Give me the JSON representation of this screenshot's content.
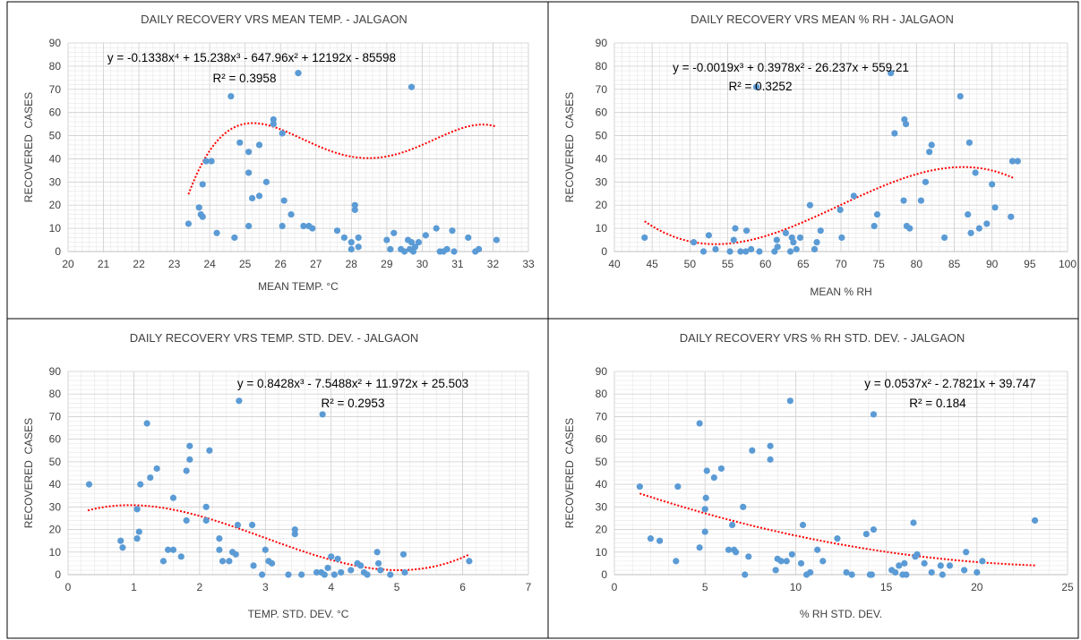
{
  "chart_data": [
    {
      "type": "scatter",
      "title": "DAILY RECOVERY VRS MEAN TEMP. - JALGAON",
      "xlabel": "MEAN TEMP. °C",
      "ylabel": "RECOVERED  CASES",
      "xlim": [
        20,
        33
      ],
      "ylim": [
        0,
        90
      ],
      "xticks": [
        20,
        21,
        22,
        23,
        24,
        25,
        26,
        27,
        28,
        29,
        30,
        31,
        32,
        33
      ],
      "yticks": [
        0,
        10,
        20,
        30,
        40,
        50,
        60,
        70,
        80,
        90
      ],
      "grid": true,
      "equation": "y = -0.1338x⁴ + 15.238x³ - 647.96x² + 12192x - 85598",
      "r2": "R² = 0.3958",
      "trend": {
        "kind": "poly",
        "coeffs": [
          -0.1338,
          15.238,
          -647.96,
          12192,
          -85598
        ],
        "xrange": [
          23.4,
          32.1
        ]
      },
      "points": [
        [
          23.4,
          12
        ],
        [
          23.7,
          19
        ],
        [
          23.75,
          16
        ],
        [
          23.8,
          15
        ],
        [
          23.8,
          29
        ],
        [
          23.9,
          39
        ],
        [
          24.05,
          39
        ],
        [
          24.2,
          8
        ],
        [
          24.6,
          67
        ],
        [
          24.7,
          6
        ],
        [
          24.85,
          47
        ],
        [
          25.1,
          43
        ],
        [
          25.1,
          34
        ],
        [
          25.1,
          11
        ],
        [
          25.2,
          23
        ],
        [
          25.4,
          24
        ],
        [
          25.4,
          46
        ],
        [
          25.6,
          30
        ],
        [
          25.8,
          57
        ],
        [
          25.8,
          55
        ],
        [
          26.05,
          51
        ],
        [
          26.05,
          11
        ],
        [
          26.1,
          22
        ],
        [
          26.3,
          16
        ],
        [
          26.5,
          77
        ],
        [
          26.65,
          11
        ],
        [
          26.8,
          11
        ],
        [
          26.9,
          10
        ],
        [
          27.6,
          9
        ],
        [
          27.8,
          6
        ],
        [
          28.0,
          4
        ],
        [
          28.0,
          1
        ],
        [
          28.1,
          18
        ],
        [
          28.1,
          20
        ],
        [
          28.2,
          2
        ],
        [
          28.2,
          6
        ],
        [
          29.0,
          5
        ],
        [
          29.1,
          1
        ],
        [
          29.2,
          8
        ],
        [
          29.4,
          1
        ],
        [
          29.5,
          0
        ],
        [
          29.6,
          5
        ],
        [
          29.65,
          1
        ],
        [
          29.7,
          71
        ],
        [
          29.7,
          4
        ],
        [
          29.75,
          0
        ],
        [
          29.8,
          2
        ],
        [
          29.9,
          4
        ],
        [
          30.1,
          7
        ],
        [
          30.4,
          10
        ],
        [
          30.5,
          0
        ],
        [
          30.6,
          0
        ],
        [
          30.7,
          1
        ],
        [
          30.85,
          9
        ],
        [
          30.9,
          0
        ],
        [
          31.3,
          6
        ],
        [
          31.5,
          0
        ],
        [
          31.6,
          1
        ],
        [
          32.1,
          5
        ]
      ]
    },
    {
      "type": "scatter",
      "title": "DAILY RECOVERY VRS MEAN % RH - JALGAON",
      "xlabel": "MEAN % RH",
      "ylabel": "RECOVERED  CASES",
      "xlim": [
        40,
        100
      ],
      "ylim": [
        0,
        90
      ],
      "xticks": [
        40,
        45,
        50,
        55,
        60,
        65,
        70,
        75,
        80,
        85,
        90,
        95,
        100
      ],
      "yticks": [
        0,
        10,
        20,
        30,
        40,
        50,
        60,
        70,
        80,
        90
      ],
      "grid": true,
      "equation": "y = -0.0019x³ + 0.3978x² - 26.237x + 559.21",
      "r2": "R² = 0.3252",
      "trend": {
        "kind": "poly",
        "coeffs": [
          -0.0019,
          0.3978,
          -26.237,
          559.21
        ],
        "xrange": [
          44,
          93
        ]
      },
      "points": [
        [
          44,
          6
        ],
        [
          50.5,
          4
        ],
        [
          51.8,
          0
        ],
        [
          52.5,
          7
        ],
        [
          53.4,
          1
        ],
        [
          55.3,
          0
        ],
        [
          55.8,
          5
        ],
        [
          56,
          10
        ],
        [
          56.7,
          0
        ],
        [
          57.4,
          0
        ],
        [
          57.5,
          9
        ],
        [
          58.1,
          1
        ],
        [
          58.8,
          71
        ],
        [
          59.2,
          0
        ],
        [
          61.2,
          0
        ],
        [
          61.5,
          5
        ],
        [
          61.6,
          2
        ],
        [
          62.7,
          8
        ],
        [
          63.3,
          0
        ],
        [
          63.5,
          6
        ],
        [
          63.7,
          4
        ],
        [
          64.1,
          1
        ],
        [
          64.6,
          6
        ],
        [
          65.9,
          20
        ],
        [
          66.5,
          1
        ],
        [
          66.8,
          4
        ],
        [
          67.3,
          9
        ],
        [
          69.9,
          18
        ],
        [
          70.1,
          6
        ],
        [
          71.7,
          24
        ],
        [
          74.4,
          11
        ],
        [
          74.8,
          16
        ],
        [
          76.6,
          77
        ],
        [
          77.1,
          51
        ],
        [
          78.4,
          57
        ],
        [
          78.6,
          55
        ],
        [
          78.7,
          11
        ],
        [
          79.1,
          10
        ],
        [
          78.3,
          22
        ],
        [
          80.6,
          22
        ],
        [
          81.2,
          30
        ],
        [
          81.7,
          43
        ],
        [
          82,
          46
        ],
        [
          83.7,
          6
        ],
        [
          85.8,
          67
        ],
        [
          86.8,
          16
        ],
        [
          87.0,
          47
        ],
        [
          87.2,
          8
        ],
        [
          87.8,
          34
        ],
        [
          88.3,
          10
        ],
        [
          89.3,
          12
        ],
        [
          90,
          29
        ],
        [
          90.4,
          19
        ],
        [
          92.5,
          15
        ],
        [
          92.7,
          39
        ],
        [
          93.4,
          39
        ]
      ]
    },
    {
      "type": "scatter",
      "title": "DAILY RECOVERY VRS TEMP. STD. DEV. - JALGAON",
      "xlabel": "TEMP. STD. DEV. °C",
      "ylabel": "RECOVERED  CASES",
      "xlim": [
        0,
        7
      ],
      "ylim": [
        0,
        90
      ],
      "xticks": [
        0,
        1,
        2,
        3,
        4,
        5,
        6,
        7
      ],
      "yticks": [
        0,
        10,
        20,
        30,
        40,
        50,
        60,
        70,
        80,
        90
      ],
      "grid": true,
      "equation": "y = 0.8428x³ - 7.5488x² + 11.972x + 25.503",
      "r2": "R² = 0.2953",
      "trend": {
        "kind": "poly",
        "coeffs": [
          0.8428,
          -7.5488,
          11.972,
          25.503
        ],
        "xrange": [
          0.3,
          6.1
        ]
      },
      "points": [
        [
          0.32,
          40
        ],
        [
          0.8,
          15
        ],
        [
          0.83,
          12
        ],
        [
          1.05,
          29
        ],
        [
          1.05,
          16
        ],
        [
          1.08,
          19
        ],
        [
          1.1,
          40
        ],
        [
          1.2,
          67
        ],
        [
          1.25,
          43
        ],
        [
          1.35,
          47
        ],
        [
          1.45,
          6
        ],
        [
          1.52,
          11
        ],
        [
          1.6,
          11
        ],
        [
          1.6,
          34
        ],
        [
          1.72,
          8
        ],
        [
          1.8,
          24
        ],
        [
          1.8,
          46
        ],
        [
          1.85,
          51
        ],
        [
          1.85,
          57
        ],
        [
          2.1,
          30
        ],
        [
          2.1,
          24
        ],
        [
          2.15,
          55
        ],
        [
          2.3,
          16
        ],
        [
          2.3,
          11
        ],
        [
          2.35,
          6
        ],
        [
          2.45,
          6
        ],
        [
          2.5,
          10
        ],
        [
          2.55,
          9
        ],
        [
          2.58,
          22
        ],
        [
          2.6,
          77
        ],
        [
          2.8,
          22
        ],
        [
          2.82,
          4
        ],
        [
          2.95,
          0
        ],
        [
          3.0,
          11
        ],
        [
          3.05,
          6
        ],
        [
          3.1,
          5
        ],
        [
          3.35,
          0
        ],
        [
          3.45,
          18
        ],
        [
          3.45,
          20
        ],
        [
          3.55,
          0
        ],
        [
          3.78,
          1
        ],
        [
          3.85,
          1
        ],
        [
          3.87,
          71
        ],
        [
          3.9,
          0
        ],
        [
          3.95,
          3
        ],
        [
          4.0,
          8
        ],
        [
          4.05,
          0
        ],
        [
          4.1,
          7
        ],
        [
          4.15,
          1
        ],
        [
          4.3,
          2
        ],
        [
          4.4,
          5
        ],
        [
          4.45,
          4
        ],
        [
          4.5,
          1
        ],
        [
          4.55,
          0
        ],
        [
          4.7,
          10
        ],
        [
          4.72,
          5
        ],
        [
          4.75,
          2
        ],
        [
          4.9,
          0
        ],
        [
          5.1,
          9
        ],
        [
          5.12,
          1
        ],
        [
          6.1,
          6
        ]
      ]
    },
    {
      "type": "scatter",
      "title": "DAILY RECOVERY VRS % RH STD. DEV. - JALGAON",
      "xlabel": "% RH STD. DEV.",
      "ylabel": "RECOVERED  CASES",
      "xlim": [
        0,
        25
      ],
      "ylim": [
        0,
        90
      ],
      "xticks": [
        0,
        5,
        10,
        15,
        20,
        25
      ],
      "yticks": [
        0,
        10,
        20,
        30,
        40,
        50,
        60,
        70,
        80,
        90
      ],
      "grid": true,
      "equation": "y = 0.0537x² - 2.7821x + 39.747",
      "r2": "R² = 0.184",
      "trend": {
        "kind": "poly",
        "coeffs": [
          0.0537,
          -2.7821,
          39.747
        ],
        "xrange": [
          1.4,
          23.2
        ]
      },
      "points": [
        [
          1.4,
          39
        ],
        [
          2.0,
          16
        ],
        [
          2.5,
          15
        ],
        [
          3.4,
          6
        ],
        [
          3.5,
          39
        ],
        [
          4.7,
          67
        ],
        [
          4.7,
          12
        ],
        [
          5.0,
          19
        ],
        [
          5.0,
          29
        ],
        [
          5.05,
          34
        ],
        [
          5.1,
          46
        ],
        [
          5.5,
          43
        ],
        [
          5.9,
          47
        ],
        [
          6.3,
          11
        ],
        [
          6.5,
          22
        ],
        [
          6.6,
          11
        ],
        [
          6.7,
          10
        ],
        [
          7.1,
          30
        ],
        [
          7.2,
          0
        ],
        [
          7.4,
          8
        ],
        [
          7.6,
          55
        ],
        [
          8.6,
          57
        ],
        [
          8.6,
          51
        ],
        [
          8.9,
          2
        ],
        [
          9.0,
          7
        ],
        [
          9.2,
          6
        ],
        [
          9.5,
          6
        ],
        [
          9.7,
          77
        ],
        [
          9.8,
          9
        ],
        [
          10.3,
          5
        ],
        [
          10.4,
          22
        ],
        [
          10.6,
          0
        ],
        [
          10.8,
          1
        ],
        [
          11.2,
          11
        ],
        [
          11.5,
          6
        ],
        [
          12.3,
          16
        ],
        [
          12.8,
          1
        ],
        [
          13.1,
          0
        ],
        [
          13.9,
          18
        ],
        [
          14.1,
          0
        ],
        [
          14.2,
          0
        ],
        [
          14.3,
          71
        ],
        [
          14.3,
          20
        ],
        [
          15.3,
          2
        ],
        [
          15.5,
          1
        ],
        [
          15.7,
          4
        ],
        [
          15.9,
          0
        ],
        [
          16.0,
          5
        ],
        [
          16.1,
          0
        ],
        [
          16.5,
          23
        ],
        [
          16.6,
          8
        ],
        [
          16.7,
          9
        ],
        [
          17.1,
          5
        ],
        [
          17.5,
          1
        ],
        [
          18.0,
          4
        ],
        [
          18.1,
          0
        ],
        [
          18.5,
          4
        ],
        [
          19.3,
          2
        ],
        [
          19.4,
          10
        ],
        [
          20.0,
          1
        ],
        [
          20.3,
          6
        ],
        [
          23.2,
          24
        ]
      ]
    }
  ]
}
